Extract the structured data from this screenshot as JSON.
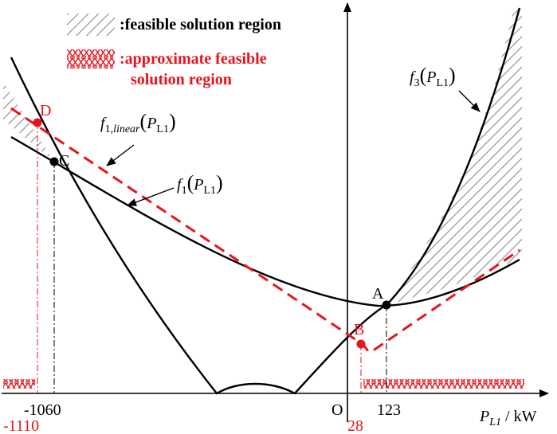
{
  "legend": {
    "feasible": ":feasible solution region",
    "approx_line1": ":approximate feasible",
    "approx_line2": "solution region"
  },
  "curves": {
    "f3": {
      "base": "f",
      "sub": "3",
      "arg": "P",
      "arg_sub": "L1"
    },
    "f1_linear": {
      "base": "f",
      "sub": "1,",
      "sub_italic": "linear",
      "arg": "P",
      "arg_sub": "L1"
    },
    "f1": {
      "base": "f",
      "sub": "1",
      "arg": "P",
      "arg_sub": "L1"
    }
  },
  "points": {
    "A": "A",
    "B": "B",
    "C": "C",
    "D": "D"
  },
  "axis": {
    "origin": "O",
    "x_label_main": "P",
    "x_label_sub": "L1",
    "x_label_unit": "/ kW",
    "ticks_black": [
      "-1060",
      "123"
    ],
    "ticks_red": [
      "-1110",
      "28"
    ]
  },
  "colors": {
    "red": "#e8141b",
    "black": "#000000",
    "hatch": "#8a8a8a"
  }
}
